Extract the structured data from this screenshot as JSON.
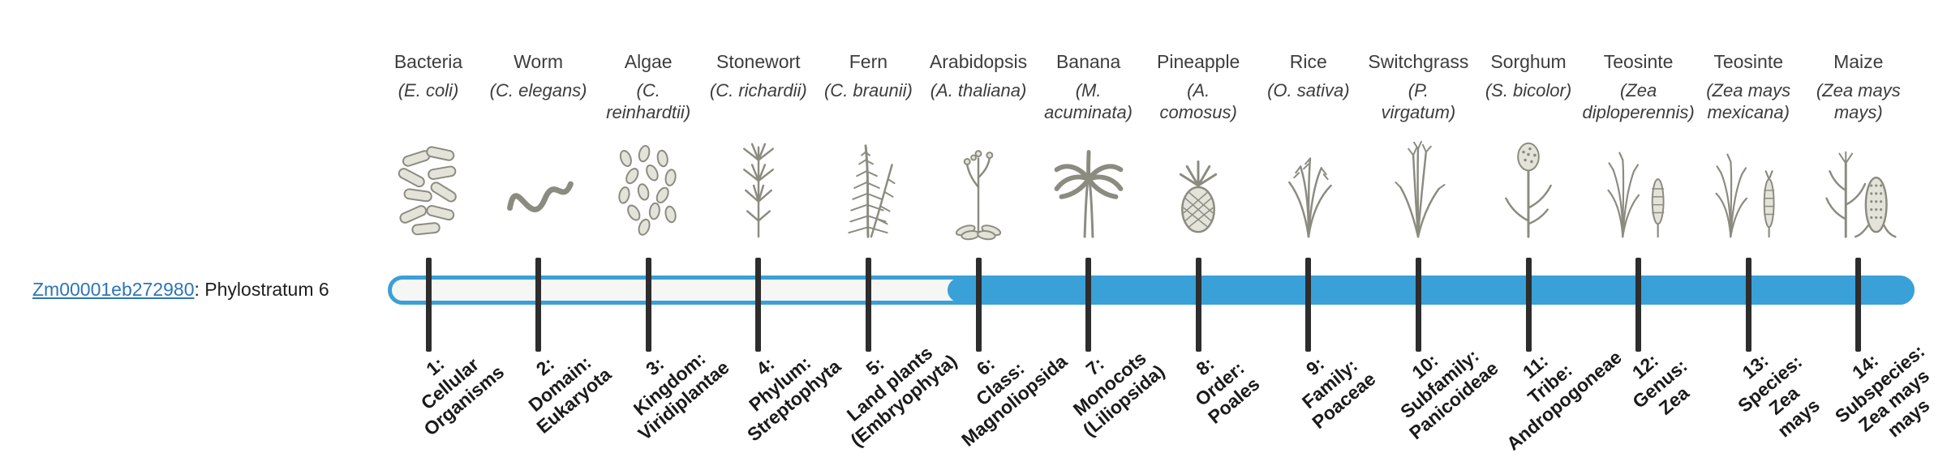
{
  "figure": {
    "title": "gene phylostratum bar"
  },
  "gene_label": {
    "link_text": "Zm00001eb272980",
    "suffix": ": Phylostratum 6"
  },
  "timeline": {
    "highlighted_from_stratum": 6,
    "total_strata": 14
  },
  "colors": {
    "accent_blue": "#3aa0d8",
    "track_fill": "#f6f6f4",
    "tick_color": "#2d2d2d",
    "link_blue": "#2e75b6",
    "top_label_color": "#3d3d3d",
    "bottom_label_color": "#1a1a1a",
    "illustration_gray": "#8b8b80"
  },
  "organisms": [
    {
      "common_name": "Bacteria",
      "scientific_name": "(E. coli)",
      "icon": "bacteria-icon"
    },
    {
      "common_name": "Worm",
      "scientific_name": "(C. elegans)",
      "icon": "worm-icon"
    },
    {
      "common_name": "Algae",
      "scientific_name": "(C.\nreinhardtii)",
      "icon": "algae-icon"
    },
    {
      "common_name": "Stonewort",
      "scientific_name": "(C. richardii)",
      "icon": "stonewort-icon"
    },
    {
      "common_name": "Fern",
      "scientific_name": "(C. braunii)",
      "icon": "fern-icon"
    },
    {
      "common_name": "Arabidopsis",
      "scientific_name": "(A. thaliana)",
      "icon": "arabidopsis-icon"
    },
    {
      "common_name": "Banana",
      "scientific_name": "(M.\nacuminata)",
      "icon": "banana-icon"
    },
    {
      "common_name": "Pineapple",
      "scientific_name": "(A.\ncomosus)",
      "icon": "pineapple-icon"
    },
    {
      "common_name": "Rice",
      "scientific_name": "(O. sativa)",
      "icon": "rice-icon"
    },
    {
      "common_name": "Switchgrass",
      "scientific_name": "(P.\nvirgatum)",
      "icon": "switchgrass-icon"
    },
    {
      "common_name": "Sorghum",
      "scientific_name": "(S. bicolor)",
      "icon": "sorghum-icon"
    },
    {
      "common_name": "Teosinte",
      "scientific_name": "(Zea\ndiploperennis)",
      "icon": "teosinte-diploperennis-icon"
    },
    {
      "common_name": "Teosinte",
      "scientific_name": "(Zea mays\nmexicana)",
      "icon": "teosinte-mexicana-icon"
    },
    {
      "common_name": "Maize",
      "scientific_name": "(Zea mays\nmays)",
      "icon": "maize-icon"
    }
  ],
  "strata": [
    {
      "index": 1,
      "label": "1:\nCellular\nOrganisms"
    },
    {
      "index": 2,
      "label": "2:\nDomain:\nEukaryota"
    },
    {
      "index": 3,
      "label": "3:\nKingdom:\nViridiplantae"
    },
    {
      "index": 4,
      "label": "4:\nPhylum:\nStreptophyta"
    },
    {
      "index": 5,
      "label": "5:\nLand plants\n(Embryophyta)"
    },
    {
      "index": 6,
      "label": "6:\nClass:\nMagnoliopsida"
    },
    {
      "index": 7,
      "label": "7:\nMonocots\n(Liliopsida)"
    },
    {
      "index": 8,
      "label": "8:\nOrder:\nPoales"
    },
    {
      "index": 9,
      "label": "9:\nFamily:\nPoaceae"
    },
    {
      "index": 10,
      "label": "10:\nSubfamily:\nPanicoideae"
    },
    {
      "index": 11,
      "label": "11:\nTribe:\nAndropogoneae"
    },
    {
      "index": 12,
      "label": "12:\nGenus:\nZea"
    },
    {
      "index": 13,
      "label": "13:\nSpecies:\nZea\nmays"
    },
    {
      "index": 14,
      "label": "14:\nSubspecies:\nZea mays\nmays"
    }
  ]
}
